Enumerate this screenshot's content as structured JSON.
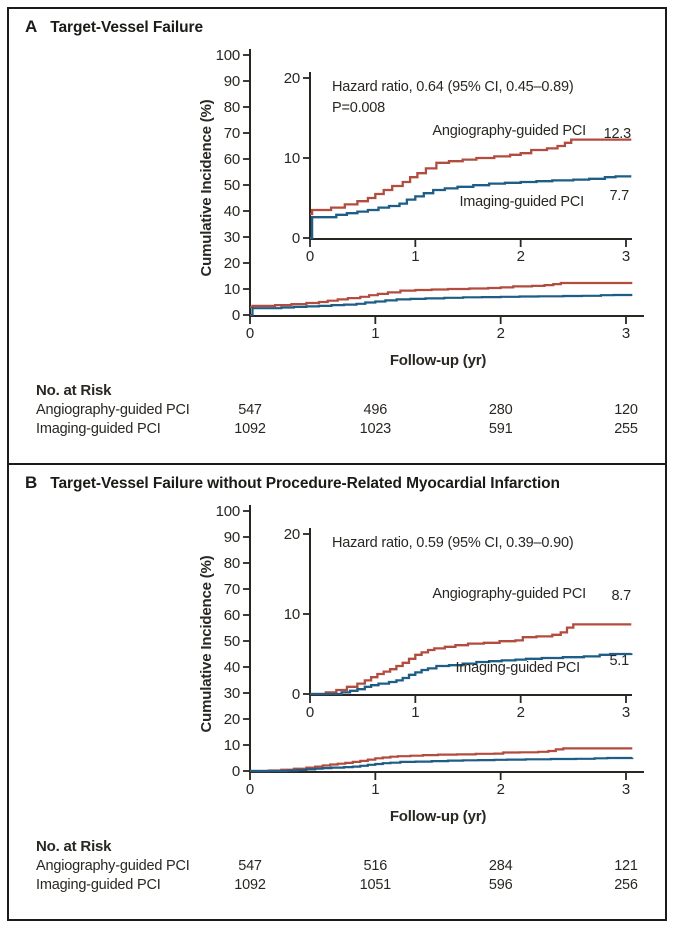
{
  "figure": {
    "colors": {
      "angiography_red": "#b24c3e",
      "imaging_blue": "#1d5d86",
      "text_dark": "#2a2723",
      "border": "#1c1b18"
    }
  },
  "chart_data": [
    {
      "type": "line",
      "panel": "A",
      "title": "Target-Vessel Failure",
      "xlabel": "Follow-up (yr)",
      "ylabel": "Cumulative Incidence (%)",
      "xlim": [
        0,
        3
      ],
      "ylim_main": [
        0,
        100
      ],
      "ylim_inset": [
        0,
        20
      ],
      "grid": "off",
      "legend": "inline-labels",
      "x_ticks": [
        "0",
        "1",
        "2",
        "3"
      ],
      "y_ticks_main": [
        "0",
        "10",
        "20",
        "30",
        "40",
        "50",
        "60",
        "70",
        "80",
        "90",
        "100"
      ],
      "y_ticks_inset": [
        "0",
        "10",
        "20"
      ],
      "annotation_lines": [
        "Hazard ratio, 0.64 (95% CI, 0.45–0.89)",
        "P=0.008"
      ],
      "series": [
        {
          "name": "Angiography-guided PCI",
          "color_key": "angiography_red",
          "end_value": 12.3,
          "end_label": "12.3",
          "steps": [
            [
              0,
              3.0
            ],
            [
              0.02,
              3.5
            ],
            [
              0.2,
              3.8
            ],
            [
              0.33,
              4.2
            ],
            [
              0.45,
              4.6
            ],
            [
              0.55,
              5.0
            ],
            [
              0.62,
              5.5
            ],
            [
              0.7,
              6.0
            ],
            [
              0.78,
              6.5
            ],
            [
              0.88,
              7.0
            ],
            [
              0.95,
              7.6
            ],
            [
              1.02,
              8.1
            ],
            [
              1.1,
              8.7
            ],
            [
              1.2,
              9.4
            ],
            [
              1.32,
              9.6
            ],
            [
              1.45,
              9.8
            ],
            [
              1.58,
              10.0
            ],
            [
              1.75,
              10.2
            ],
            [
              1.9,
              10.4
            ],
            [
              2.0,
              10.6
            ],
            [
              2.1,
              11.0
            ],
            [
              2.25,
              11.2
            ],
            [
              2.35,
              11.5
            ],
            [
              2.42,
              11.9
            ],
            [
              2.48,
              12.3
            ],
            [
              3.05,
              12.3
            ]
          ]
        },
        {
          "name": "Imaging-guided PCI",
          "color_key": "imaging_blue",
          "end_value": 7.7,
          "end_label": "7.7",
          "steps": [
            [
              0,
              0
            ],
            [
              0.02,
              2.6
            ],
            [
              0.25,
              2.9
            ],
            [
              0.35,
              3.1
            ],
            [
              0.45,
              3.3
            ],
            [
              0.55,
              3.5
            ],
            [
              0.65,
              3.8
            ],
            [
              0.75,
              4.0
            ],
            [
              0.85,
              4.3
            ],
            [
              0.92,
              4.8
            ],
            [
              1.0,
              5.2
            ],
            [
              1.08,
              5.6
            ],
            [
              1.17,
              6.0
            ],
            [
              1.28,
              6.2
            ],
            [
              1.4,
              6.4
            ],
            [
              1.55,
              6.6
            ],
            [
              1.7,
              6.8
            ],
            [
              1.85,
              6.9
            ],
            [
              2.0,
              7.0
            ],
            [
              2.15,
              7.1
            ],
            [
              2.3,
              7.2
            ],
            [
              2.5,
              7.3
            ],
            [
              2.65,
              7.4
            ],
            [
              2.8,
              7.6
            ],
            [
              2.9,
              7.7
            ],
            [
              3.05,
              7.7
            ]
          ]
        }
      ],
      "no_at_risk": {
        "header": "No. at Risk",
        "rows": [
          {
            "label": "Angiography-guided PCI",
            "values": [
              "547",
              "496",
              "280",
              "120"
            ]
          },
          {
            "label": "Imaging-guided PCI",
            "values": [
              "1092",
              "1023",
              "591",
              "255"
            ]
          }
        ]
      }
    },
    {
      "type": "line",
      "panel": "B",
      "title": "Target-Vessel Failure without Procedure-Related Myocardial Infarction",
      "xlabel": "Follow-up (yr)",
      "ylabel": "Cumulative Incidence (%)",
      "xlim": [
        0,
        3
      ],
      "ylim_main": [
        0,
        100
      ],
      "ylim_inset": [
        0,
        20
      ],
      "grid": "off",
      "legend": "inline-labels",
      "x_ticks": [
        "0",
        "1",
        "2",
        "3"
      ],
      "y_ticks_main": [
        "0",
        "10",
        "20",
        "30",
        "40",
        "50",
        "60",
        "70",
        "80",
        "90",
        "100"
      ],
      "y_ticks_inset": [
        "0",
        "10",
        "20"
      ],
      "annotation_lines": [
        "Hazard ratio, 0.59 (95% CI, 0.39–0.90)"
      ],
      "series": [
        {
          "name": "Angiography-guided PCI",
          "color_key": "angiography_red",
          "end_value": 8.7,
          "end_label": "8.7",
          "steps": [
            [
              0,
              0
            ],
            [
              0.15,
              0.2
            ],
            [
              0.25,
              0.5
            ],
            [
              0.35,
              0.9
            ],
            [
              0.45,
              1.3
            ],
            [
              0.52,
              1.7
            ],
            [
              0.58,
              2.1
            ],
            [
              0.64,
              2.5
            ],
            [
              0.7,
              2.8
            ],
            [
              0.76,
              3.1
            ],
            [
              0.82,
              3.5
            ],
            [
              0.88,
              3.9
            ],
            [
              0.94,
              4.4
            ],
            [
              1.0,
              4.9
            ],
            [
              1.06,
              5.2
            ],
            [
              1.12,
              5.5
            ],
            [
              1.18,
              5.7
            ],
            [
              1.28,
              5.9
            ],
            [
              1.38,
              6.1
            ],
            [
              1.5,
              6.3
            ],
            [
              1.65,
              6.4
            ],
            [
              1.8,
              6.6
            ],
            [
              1.95,
              6.7
            ],
            [
              2.02,
              7.1
            ],
            [
              2.15,
              7.2
            ],
            [
              2.3,
              7.4
            ],
            [
              2.38,
              7.7
            ],
            [
              2.44,
              8.3
            ],
            [
              2.5,
              8.7
            ],
            [
              3.05,
              8.7
            ]
          ]
        },
        {
          "name": "Imaging-guided PCI",
          "color_key": "imaging_blue",
          "end_value": 5.1,
          "end_label": "5.1",
          "steps": [
            [
              0,
              0
            ],
            [
              0.3,
              0.2
            ],
            [
              0.38,
              0.4
            ],
            [
              0.45,
              0.6
            ],
            [
              0.52,
              0.9
            ],
            [
              0.58,
              1.1
            ],
            [
              0.65,
              1.3
            ],
            [
              0.75,
              1.5
            ],
            [
              0.82,
              1.7
            ],
            [
              0.88,
              2.0
            ],
            [
              0.94,
              2.4
            ],
            [
              1.0,
              2.7
            ],
            [
              1.06,
              3.0
            ],
            [
              1.12,
              3.2
            ],
            [
              1.2,
              3.5
            ],
            [
              1.32,
              3.6
            ],
            [
              1.45,
              3.8
            ],
            [
              1.58,
              4.0
            ],
            [
              1.7,
              4.1
            ],
            [
              1.82,
              4.2
            ],
            [
              1.95,
              4.3
            ],
            [
              2.05,
              4.4
            ],
            [
              2.2,
              4.5
            ],
            [
              2.4,
              4.6
            ],
            [
              2.6,
              4.7
            ],
            [
              2.75,
              4.9
            ],
            [
              2.85,
              5.0
            ],
            [
              3.05,
              5.1
            ]
          ]
        }
      ],
      "no_at_risk": {
        "header": "No. at Risk",
        "rows": [
          {
            "label": "Angiography-guided PCI",
            "values": [
              "547",
              "516",
              "284",
              "121"
            ]
          },
          {
            "label": "Imaging-guided PCI",
            "values": [
              "1092",
              "1051",
              "596",
              "256"
            ]
          }
        ]
      }
    }
  ]
}
